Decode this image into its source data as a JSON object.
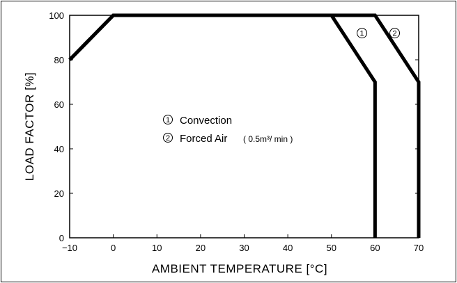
{
  "chart_data": {
    "type": "line",
    "xlabel": "AMBIENT TEMPERATURE [°C]",
    "ylabel": "LOAD FACTOR [%]",
    "xlim": [
      -10,
      70
    ],
    "ylim": [
      0,
      100
    ],
    "xticks": [
      "-10",
      "0",
      "10",
      "20",
      "30",
      "40",
      "50",
      "60",
      "70"
    ],
    "yticks": [
      "0",
      "20",
      "40",
      "60",
      "80",
      "100"
    ],
    "grid": false,
    "series": [
      {
        "name": "① Convection",
        "marker": "1",
        "x": [
          -10,
          0,
          50,
          60,
          60
        ],
        "y": [
          80,
          100,
          100,
          70,
          0
        ]
      },
      {
        "name": "② Forced Air (0.5m³/min)",
        "marker": "2",
        "x": [
          -10,
          0,
          50,
          60,
          70,
          70
        ],
        "y": [
          80,
          100,
          100,
          100,
          70,
          0
        ]
      }
    ],
    "legend": {
      "placement": "center",
      "items": [
        {
          "marker": "1",
          "label": "Convection",
          "sub": ""
        },
        {
          "marker": "2",
          "label": "Forced Air",
          "sub": "( 0.5m³/ min )"
        }
      ]
    }
  }
}
